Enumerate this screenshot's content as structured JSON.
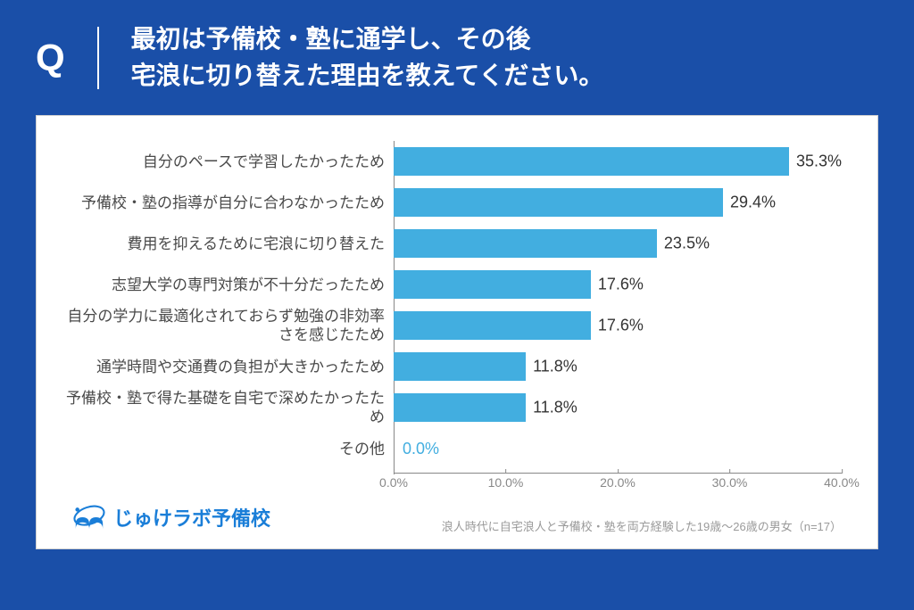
{
  "header": {
    "q_mark": "Q",
    "question_line1": "最初は予備校・塾に通学し、その後",
    "question_line2": "宅浪に切り替えた理由を教えてください。"
  },
  "chart": {
    "type": "bar-horizontal",
    "bar_color": "#42aee0",
    "value_color": "#333333",
    "zero_value_color": "#42aee0",
    "label_color": "#4a4a4a",
    "background_color": "#ffffff",
    "grid_color": "#888888",
    "label_fontsize": 17,
    "value_fontsize": 18,
    "xlim": [
      0,
      40
    ],
    "xtick_step": 10,
    "ticks": [
      "0.0%",
      "10.0%",
      "20.0%",
      "30.0%",
      "40.0%"
    ],
    "tick_positions_pct": [
      0,
      25,
      50,
      75,
      100
    ],
    "items": [
      {
        "label": "自分のペースで学習したかったため",
        "value": 35.3,
        "value_label": "35.3%"
      },
      {
        "label": "予備校・塾の指導が自分に合わなかったため",
        "value": 29.4,
        "value_label": "29.4%"
      },
      {
        "label": "費用を抑えるために宅浪に切り替えた",
        "value": 23.5,
        "value_label": "23.5%"
      },
      {
        "label": "志望大学の専門対策が不十分だったため",
        "value": 17.6,
        "value_label": "17.6%"
      },
      {
        "label": "自分の学力に最適化されておらず勉強の非効率さを感じたため",
        "value": 17.6,
        "value_label": "17.6%"
      },
      {
        "label": "通学時間や交通費の負担が大きかったため",
        "value": 11.8,
        "value_label": "11.8%"
      },
      {
        "label": "予備校・塾で得た基礎を自宅で深めたかったため",
        "value": 11.8,
        "value_label": "11.8%"
      },
      {
        "label": "その他",
        "value": 0.0,
        "value_label": "0.0%"
      }
    ]
  },
  "footer": {
    "logo_text": "じゅけラボ予備校",
    "footnote": "浪人時代に自宅浪人と予備校・塾を両方経験した19歳～26歳の男女（n=17）"
  },
  "colors": {
    "header_bg": "#1a4fa8",
    "logo_text": "#1a7ed8"
  }
}
